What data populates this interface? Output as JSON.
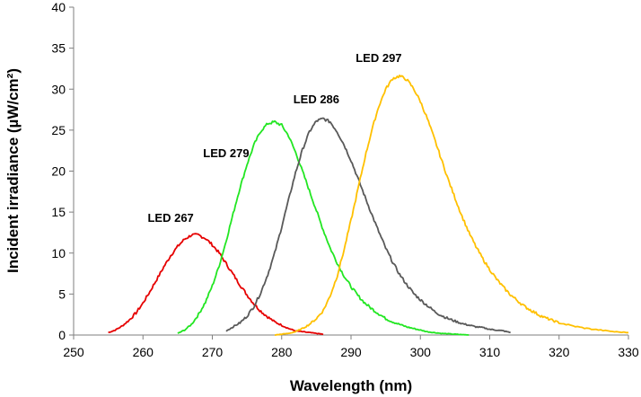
{
  "chart_data": {
    "type": "line",
    "title": "",
    "xlabel": "Wavelength (nm)",
    "ylabel": "Incident irradiance (µW/cm²)",
    "xlim": [
      250,
      330
    ],
    "ylim": [
      0,
      40
    ],
    "xticks": [
      250,
      260,
      270,
      280,
      290,
      300,
      310,
      320,
      330
    ],
    "yticks": [
      0,
      5,
      10,
      15,
      20,
      25,
      30,
      35,
      40
    ],
    "grid": false,
    "legend": "none",
    "series": [
      {
        "name": "LED 267",
        "color": "#e60000",
        "x": [
          255,
          256,
          257,
          258,
          259,
          260,
          261,
          262,
          263,
          264,
          265,
          266,
          267,
          268,
          269,
          270,
          271,
          272,
          273,
          274,
          275,
          276,
          277,
          278,
          279,
          280,
          281,
          282,
          283,
          284,
          285,
          286
        ],
        "y": [
          0.3,
          0.6,
          1.1,
          1.8,
          2.7,
          3.9,
          5.3,
          6.8,
          8.3,
          9.7,
          10.8,
          11.7,
          12.2,
          12.2,
          11.8,
          11.0,
          10.0,
          8.7,
          7.4,
          6.1,
          4.9,
          3.8,
          2.9,
          2.2,
          1.6,
          1.2,
          0.8,
          0.5,
          0.4,
          0.3,
          0.2,
          0.1
        ]
      },
      {
        "name": "LED 279",
        "color": "#22e622",
        "x": [
          265,
          266,
          267,
          268,
          269,
          270,
          271,
          272,
          273,
          274,
          275,
          276,
          277,
          278,
          279,
          280,
          281,
          282,
          283,
          284,
          285,
          286,
          287,
          288,
          289,
          290,
          291,
          292,
          293,
          294,
          295,
          296,
          297,
          298,
          299,
          300,
          301,
          302,
          303,
          304,
          305,
          306,
          307
        ],
        "y": [
          0.2,
          0.6,
          1.3,
          2.5,
          4.0,
          6.0,
          8.5,
          11.5,
          14.8,
          18.0,
          20.8,
          23.2,
          24.9,
          25.8,
          26.0,
          25.6,
          24.3,
          22.3,
          20.0,
          17.6,
          15.2,
          12.8,
          10.6,
          8.8,
          7.2,
          5.9,
          4.8,
          3.9,
          3.2,
          2.6,
          2.0,
          1.6,
          1.3,
          1.0,
          0.8,
          0.6,
          0.4,
          0.3,
          0.2,
          0.15,
          0.1,
          0.05,
          0
        ]
      },
      {
        "name": "LED 286",
        "color": "#595959",
        "x": [
          272,
          273,
          274,
          275,
          276,
          277,
          278,
          279,
          280,
          281,
          282,
          283,
          284,
          285,
          286,
          287,
          288,
          289,
          290,
          291,
          292,
          293,
          294,
          295,
          296,
          297,
          298,
          299,
          300,
          301,
          302,
          303,
          304,
          305,
          306,
          307,
          308,
          309,
          310,
          311,
          312,
          313
        ],
        "y": [
          0.5,
          1.0,
          1.5,
          2.3,
          3.5,
          5.2,
          7.4,
          10.0,
          13.2,
          16.5,
          19.8,
          22.6,
          24.8,
          26.1,
          26.4,
          26.0,
          24.8,
          23.2,
          21.3,
          19.1,
          16.9,
          14.7,
          12.6,
          10.6,
          8.9,
          7.4,
          6.2,
          5.1,
          4.3,
          3.6,
          2.9,
          2.4,
          2.0,
          1.7,
          1.4,
          1.2,
          1.0,
          0.9,
          0.7,
          0.6,
          0.5,
          0.3
        ]
      },
      {
        "name": "LED 297",
        "color": "#ffc000",
        "x": [
          279,
          280,
          281,
          282,
          283,
          284,
          285,
          286,
          287,
          288,
          289,
          290,
          291,
          292,
          293,
          294,
          295,
          296,
          297,
          298,
          299,
          300,
          301,
          302,
          303,
          304,
          305,
          306,
          307,
          308,
          309,
          310,
          311,
          312,
          313,
          314,
          315,
          316,
          317,
          318,
          319,
          320,
          322,
          324,
          326,
          328,
          330
        ],
        "y": [
          0,
          0.1,
          0.2,
          0.4,
          0.8,
          1.3,
          2.0,
          3.0,
          4.8,
          7.2,
          10.4,
          14.0,
          17.8,
          21.6,
          25.0,
          27.9,
          30.0,
          31.3,
          31.6,
          31.2,
          30.1,
          28.5,
          26.4,
          24.0,
          21.5,
          19.0,
          16.7,
          14.5,
          12.5,
          10.8,
          9.3,
          8.0,
          6.8,
          5.8,
          4.9,
          4.2,
          3.5,
          3.0,
          2.5,
          2.1,
          1.8,
          1.5,
          1.1,
          0.8,
          0.6,
          0.4,
          0.3
        ]
      }
    ],
    "annotations": [
      {
        "text": "LED 267",
        "x": 264,
        "y": 13.8
      },
      {
        "text": "LED 279",
        "x": 272,
        "y": 21.7
      },
      {
        "text": "LED 286",
        "x": 285,
        "y": 28.3
      },
      {
        "text": "LED 297",
        "x": 294,
        "y": 33.3
      }
    ]
  }
}
